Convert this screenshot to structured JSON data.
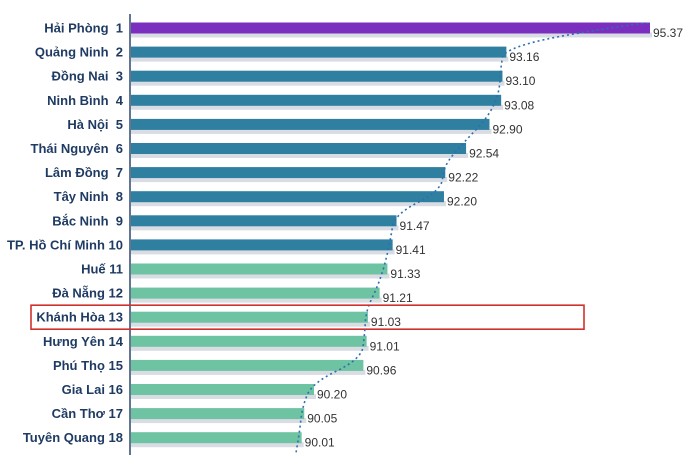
{
  "chart_data": {
    "type": "bar",
    "orientation": "horizontal",
    "title": "",
    "xlabel": "",
    "ylabel": "",
    "xlim": [
      0,
      95.37
    ],
    "grid": false,
    "legend": "none",
    "categories": [
      "Hải Phòng  1",
      "Quảng Ninh  2",
      "Đồng Nai  3",
      "Ninh Bình  4",
      "Hà Nội  5",
      "Thái Nguyên  6",
      "Lâm Đồng  7",
      "Tây Ninh  8",
      "Bắc Ninh  9",
      "TP. Hồ Chí Minh 10",
      "Huế 11",
      "Đà Nẵng 12",
      "Khánh Hòa 13",
      "Hưng Yên 14",
      "Phú Thọ 15",
      "Gia Lai 16",
      "Cần Thơ 17",
      "Tuyên Quang 18"
    ],
    "values": [
      95.37,
      93.16,
      93.1,
      93.08,
      92.9,
      92.54,
      92.22,
      92.2,
      91.47,
      91.41,
      91.33,
      91.21,
      91.03,
      91.01,
      90.96,
      90.2,
      90.05,
      90.01
    ],
    "value_labels": [
      "95.37",
      "93.16",
      "93.10",
      "93.08",
      "92.90",
      "92.54",
      "92.22",
      "92.20",
      "91.47",
      "91.41",
      "91.33",
      "91.21",
      "91.03",
      "91.01",
      "90.96",
      "90.20",
      "90.05",
      "90.01"
    ],
    "bar_colors": [
      "#7b2fbf",
      "#2e7fa0",
      "#2e7fa0",
      "#2e7fa0",
      "#2e7fa0",
      "#2e7fa0",
      "#2e7fa0",
      "#2e7fa0",
      "#2e7fa0",
      "#2e7fa0",
      "#6dc3a2",
      "#6dc3a2",
      "#6dc3a2",
      "#6dc3a2",
      "#6dc3a2",
      "#6dc3a2",
      "#6dc3a2",
      "#6dc3a2"
    ],
    "trendline": "dotted",
    "trendline_color": "#2e6fb0",
    "highlight": {
      "category": "Khánh Hòa 13",
      "color": "#d0312d"
    }
  }
}
